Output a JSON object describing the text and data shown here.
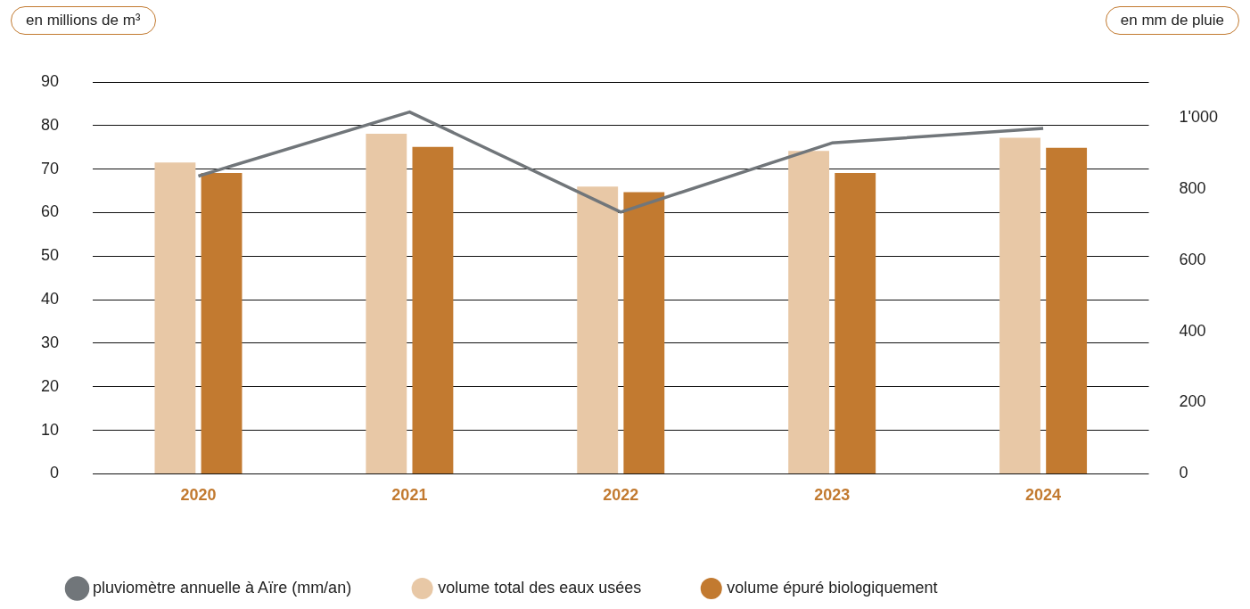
{
  "chart_data": {
    "type": "bar",
    "ylabel": "en millions de m³",
    "y2label": "en mm de pluie",
    "categories": [
      "2020",
      "2021",
      "2022",
      "2023",
      "2024"
    ],
    "series": [
      {
        "name": "volume total des eaux usées",
        "color": "#e8c8a6",
        "values": [
          71.5,
          78.1,
          66.0,
          74.2,
          77.2
        ]
      },
      {
        "name": "volume épuré biologiquement",
        "color": "#c27a30",
        "values": [
          69.1,
          75.1,
          64.7,
          69.1,
          74.9
        ]
      },
      {
        "name": "pluviomètre annuelle à Aïre (mm/an)",
        "type": "line",
        "axis": "y2",
        "color": "#71767a",
        "values": [
          836,
          1016,
          735,
          929,
          970
        ]
      }
    ],
    "ylim": [
      0,
      90
    ],
    "yticks": [
      0,
      10,
      20,
      30,
      40,
      50,
      60,
      70,
      80,
      90
    ],
    "y2lim": [
      0,
      1100
    ],
    "y2ticks": [
      0,
      200,
      400,
      600,
      800,
      {
        "value": 1000,
        "label": "1'000"
      }
    ],
    "grid": "y",
    "legend": "bottom",
    "marker": "none",
    "line_style": "solid"
  }
}
